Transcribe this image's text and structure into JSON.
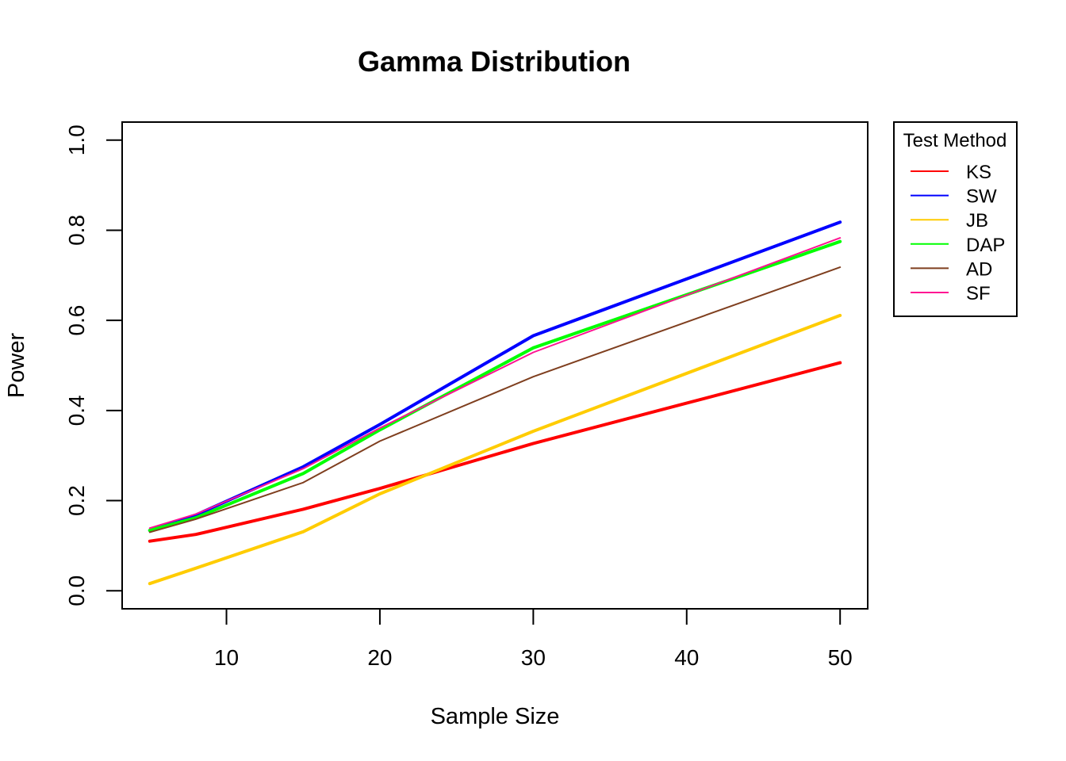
{
  "chart_data": {
    "type": "line",
    "title": "Gamma Distribution",
    "xlabel": "Sample Size",
    "ylabel": "Power",
    "xlim": [
      3.2,
      51.8
    ],
    "ylim": [
      -0.04,
      1.04
    ],
    "x_ticks": [
      10,
      20,
      30,
      40,
      50
    ],
    "y_ticks": [
      0.0,
      0.2,
      0.4,
      0.6,
      0.8,
      1.0
    ],
    "x_tick_labels": [
      "10",
      "20",
      "30",
      "40",
      "50"
    ],
    "y_tick_labels": [
      "0.0",
      "0.2",
      "0.4",
      "0.6",
      "0.8",
      "1.0"
    ],
    "x": [
      5,
      8,
      15,
      20,
      30,
      50
    ],
    "grid": false,
    "legend": {
      "title": "Test Method",
      "placement": "outside-right"
    },
    "series": [
      {
        "name": "KS",
        "color": "#ff0000",
        "width": "thick",
        "values": [
          0.11,
          0.125,
          0.181,
          0.227,
          0.327,
          0.506
        ]
      },
      {
        "name": "SW",
        "color": "#0000ff",
        "width": "thick",
        "values": [
          0.134,
          0.168,
          0.275,
          0.369,
          0.566,
          0.818
        ]
      },
      {
        "name": "JB",
        "color": "#ffcc00",
        "width": "thick",
        "values": [
          0.016,
          0.05,
          0.131,
          0.215,
          0.354,
          0.611
        ]
      },
      {
        "name": "DAP",
        "color": "#00ff00",
        "width": "thick",
        "values": [
          0.134,
          0.162,
          0.26,
          0.357,
          0.539,
          0.775
        ]
      },
      {
        "name": "AD",
        "color": "#7f3f1f",
        "width": "thin",
        "values": [
          0.13,
          0.159,
          0.24,
          0.332,
          0.475,
          0.718
        ]
      },
      {
        "name": "SF",
        "color": "#ff1493",
        "width": "thin",
        "values": [
          0.139,
          0.17,
          0.271,
          0.361,
          0.529,
          0.783
        ]
      }
    ]
  }
}
